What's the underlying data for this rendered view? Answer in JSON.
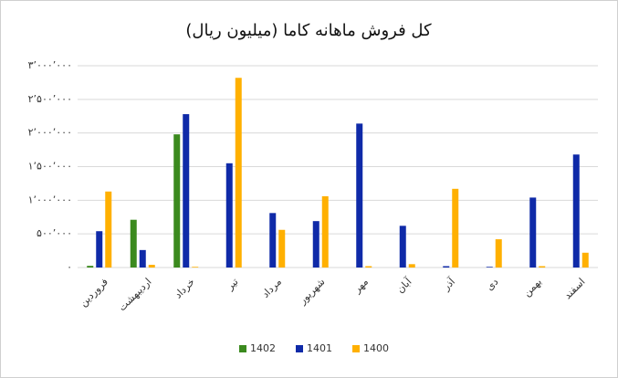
{
  "chart_data": {
    "type": "bar",
    "title": "کل فروش ماهانه کاما (میلیون ریال)",
    "categories": [
      "فروردین",
      "اردیبهشت",
      "خرداد",
      "تیر",
      "مرداد",
      "شهریور",
      "مهر",
      "آبان",
      "آذر",
      "دی",
      "بهمن",
      "اسفند"
    ],
    "series": [
      {
        "name": "1402",
        "color": "#3b8a1e",
        "values": [
          25000,
          710000,
          1980000,
          null,
          null,
          null,
          null,
          null,
          null,
          null,
          null,
          null
        ]
      },
      {
        "name": "1401",
        "color": "#0f2aa8",
        "values": [
          540000,
          260000,
          2280000,
          1550000,
          810000,
          690000,
          2140000,
          620000,
          20000,
          10000,
          1040000,
          1680000
        ]
      },
      {
        "name": "1400",
        "color": "#ffb000",
        "values": [
          1130000,
          40000,
          10000,
          2820000,
          560000,
          1060000,
          20000,
          50000,
          1170000,
          420000,
          20000,
          220000
        ]
      }
    ],
    "ylim": [
      0,
      3000000
    ],
    "yticks": [
      {
        "value": 0,
        "label": "۰"
      },
      {
        "value": 500000,
        "label": "۵۰۰٬۰۰۰"
      },
      {
        "value": 1000000,
        "label": "۱٬۰۰۰٬۰۰۰"
      },
      {
        "value": 1500000,
        "label": "۱٬۵۰۰٬۰۰۰"
      },
      {
        "value": 2000000,
        "label": "۲٬۰۰۰٬۰۰۰"
      },
      {
        "value": 2500000,
        "label": "۲٬۵۰۰٬۰۰۰"
      },
      {
        "value": 3000000,
        "label": "۳٬۰۰۰٬۰۰۰"
      }
    ],
    "grid": true
  }
}
